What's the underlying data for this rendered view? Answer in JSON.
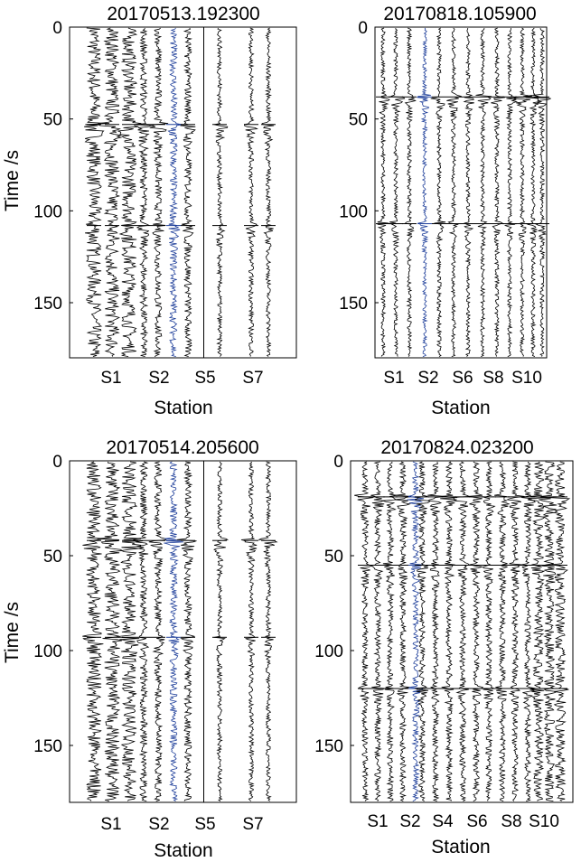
{
  "chart_data": [
    {
      "type": "seismogram-section",
      "title": "20170513.192300",
      "xlabel": "Station",
      "ylabel": "Time /s",
      "ylim": [
        0,
        180
      ],
      "yticks": [
        0,
        50,
        100,
        150
      ],
      "xticks": [
        "S1",
        "S2",
        "S5",
        "S7"
      ],
      "trace_count": 10,
      "highlight_trace": 6,
      "highlight_color": "#1f3f9a",
      "trace_color": "#000000",
      "separator_after_trace": 7,
      "noise_level_by_trace": [
        1.0,
        1.0,
        1.0,
        0.4,
        0.4,
        0.4,
        0.4,
        0.2,
        0.2,
        0.2
      ],
      "arrivals_s": [
        53,
        108
      ]
    },
    {
      "type": "seismogram-section",
      "title": "20170818.105900",
      "xlabel": "Station",
      "ylabel": "",
      "ylim": [
        0,
        180
      ],
      "yticks": [
        0,
        50,
        100,
        150
      ],
      "xticks": [
        "S1",
        "S2",
        "S6",
        "S8",
        "S10"
      ],
      "trace_count": 13,
      "highlight_trace": 4,
      "highlight_color": "#1f3f9a",
      "trace_color": "#000000",
      "noise_level_by_trace": [
        0.15,
        0.15,
        0.15,
        0.15,
        0.15,
        0.15,
        0.15,
        0.15,
        0.15,
        0.15,
        0.15,
        0.15,
        0.15
      ],
      "arrivals_s": [
        38,
        107
      ]
    },
    {
      "type": "seismogram-section",
      "title": "20170514.205600",
      "xlabel": "Station",
      "ylabel": "Time /s",
      "ylim": [
        0,
        180
      ],
      "yticks": [
        0,
        50,
        100,
        150
      ],
      "xticks": [
        "S1",
        "S2",
        "S5",
        "S7"
      ],
      "trace_count": 10,
      "highlight_trace": 6,
      "highlight_color": "#1f3f9a",
      "trace_color": "#000000",
      "separator_after_trace": 7,
      "noise_level_by_trace": [
        1.0,
        1.0,
        1.0,
        0.4,
        0.4,
        0.4,
        0.4,
        0.2,
        0.2,
        0.2
      ],
      "arrivals_s": [
        42,
        93
      ]
    },
    {
      "type": "seismogram-section",
      "title": "20170824.023200",
      "xlabel": "Station",
      "ylabel": "",
      "ylim": [
        0,
        180
      ],
      "yticks": [
        0,
        50,
        100,
        150
      ],
      "xticks": [
        "S1",
        "S2",
        "S4",
        "S6",
        "S8",
        "S10"
      ],
      "trace_count": 17,
      "highlight_trace": 5,
      "highlight_color": "#1f3f9a",
      "trace_color": "#000000",
      "noise_level_by_trace": [
        0.3,
        0.3,
        0.3,
        0.3,
        0.3,
        0.3,
        0.3,
        0.3,
        0.3,
        0.3,
        0.3,
        0.3,
        0.3,
        0.3,
        0.6,
        0.6,
        0.6
      ],
      "arrivals_s": [
        19,
        55,
        120
      ]
    }
  ]
}
